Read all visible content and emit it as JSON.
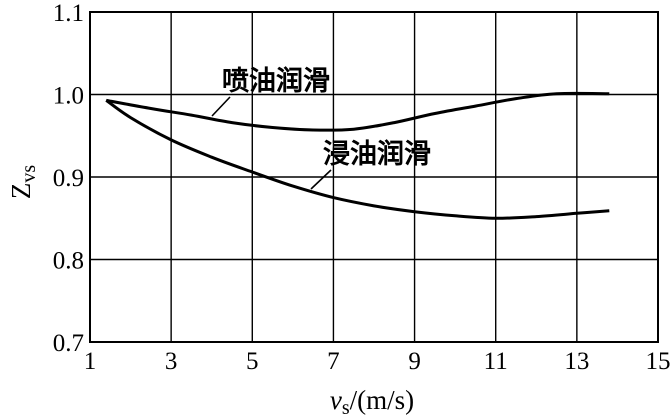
{
  "chart_data": {
    "type": "line",
    "title": "",
    "xlabel": {
      "main": "v",
      "sub": "s",
      "unit": "/(m/s)"
    },
    "ylabel": {
      "main": "Z",
      "sub": "vs"
    },
    "xlim": [
      1,
      15
    ],
    "ylim": [
      0.7,
      1.1
    ],
    "xticks": [
      1,
      3,
      5,
      7,
      9,
      11,
      13,
      15
    ],
    "yticks": [
      0.7,
      0.8,
      0.9,
      1.0,
      1.1
    ],
    "xtick_labels": [
      "1",
      "3",
      "5",
      "7",
      "9",
      "11",
      "13",
      "15"
    ],
    "ytick_labels": [
      "0.7",
      "0.8",
      "0.9",
      "1.0",
      "1.1"
    ],
    "grid": true,
    "series": [
      {
        "name": "喷油润滑",
        "x": [
          1.4,
          2.5,
          3.5,
          4.5,
          5.5,
          6.5,
          7.5,
          8.5,
          9.5,
          10.5,
          11.5,
          12.5,
          13.8
        ],
        "y": [
          0.993,
          0.983,
          0.975,
          0.966,
          0.96,
          0.957,
          0.958,
          0.966,
          0.977,
          0.986,
          0.995,
          1.001,
          1.001
        ]
      },
      {
        "name": "浸油润滑",
        "x": [
          1.4,
          2.0,
          3.0,
          4.0,
          5.0,
          6.0,
          7.0,
          8.0,
          9.0,
          10.0,
          11.0,
          12.0,
          13.0,
          13.8
        ],
        "y": [
          0.993,
          0.972,
          0.945,
          0.924,
          0.906,
          0.889,
          0.875,
          0.865,
          0.858,
          0.853,
          0.85,
          0.852,
          0.856,
          0.859
        ]
      }
    ]
  }
}
